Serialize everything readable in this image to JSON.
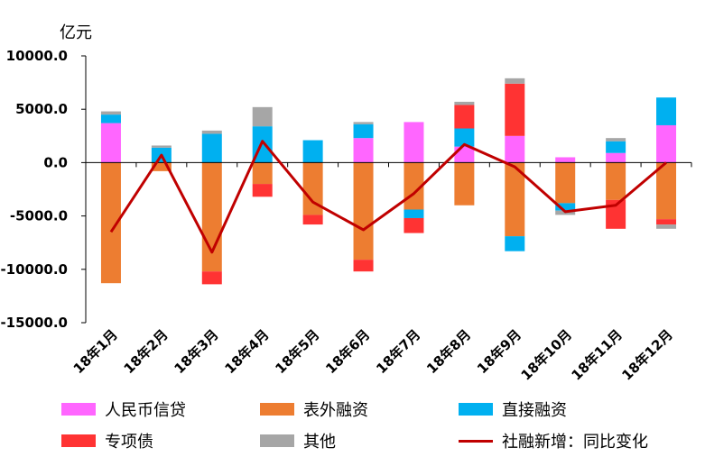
{
  "chart_data": {
    "type": "bar",
    "stacked": true,
    "unit_label": "亿元",
    "categories": [
      "18年1月",
      "18年2月",
      "18年3月",
      "18年4月",
      "18年5月",
      "18年6月",
      "18年7月",
      "18年8月",
      "18年9月",
      "18年10月",
      "18年11月",
      "18年12月"
    ],
    "ylim": [
      -15000,
      10000
    ],
    "yticks": [
      "10000.0",
      "5000.0",
      "0.0",
      "-5000.0",
      "-10000.0",
      "-15000.0"
    ],
    "ytick_values": [
      10000,
      5000,
      0,
      -5000,
      -10000,
      -15000
    ],
    "series": [
      {
        "name": "人民币信贷",
        "color": "#FF66FF",
        "values": [
          3700,
          0,
          0,
          0,
          0,
          2300,
          3800,
          1500,
          2500,
          500,
          900,
          3500
        ]
      },
      {
        "name": "表外融资",
        "color": "#ED7D31",
        "values": [
          -11300,
          -800,
          -10200,
          -2000,
          -4900,
          -9100,
          -4400,
          -4000,
          -6900,
          -3800,
          -3500,
          -5300
        ]
      },
      {
        "name": "直接融资",
        "color": "#00B0F0",
        "values": [
          800,
          1400,
          2700,
          3400,
          2100,
          1300,
          -800,
          1700,
          -1400,
          -700,
          1100,
          2600
        ]
      },
      {
        "name": "专项债",
        "color": "#FF3333",
        "values": [
          0,
          0,
          -1200,
          -1200,
          -900,
          -1100,
          -1400,
          2200,
          4900,
          0,
          -2700,
          -500
        ]
      },
      {
        "name": "其他",
        "color": "#A6A6A6",
        "values": [
          300,
          200,
          300,
          1800,
          0,
          200,
          0,
          300,
          500,
          -400,
          300,
          -400
        ]
      }
    ],
    "line": {
      "name": "社融新增：同比变化",
      "color": "#C00000",
      "values": [
        -6500,
        700,
        -8400,
        2000,
        -3700,
        -6300,
        -2900,
        1700,
        -400,
        -4600,
        -4000,
        0
      ]
    },
    "legend_position": "bottom",
    "grid": false
  }
}
